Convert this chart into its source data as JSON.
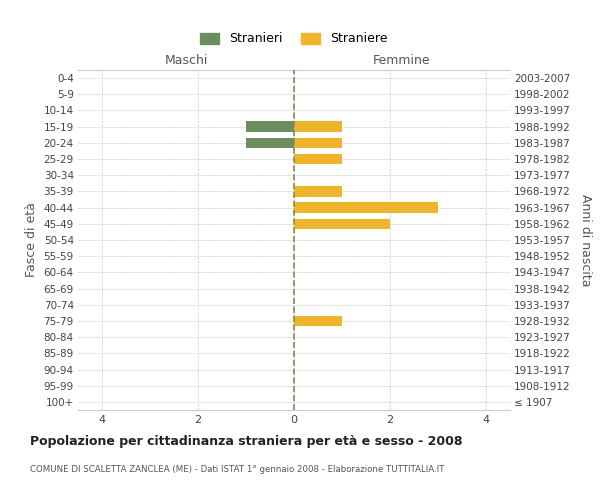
{
  "age_groups": [
    "100+",
    "95-99",
    "90-94",
    "85-89",
    "80-84",
    "75-79",
    "70-74",
    "65-69",
    "60-64",
    "55-59",
    "50-54",
    "45-49",
    "40-44",
    "35-39",
    "30-34",
    "25-29",
    "20-24",
    "15-19",
    "10-14",
    "5-9",
    "0-4"
  ],
  "birth_years": [
    "≤ 1907",
    "1908-1912",
    "1913-1917",
    "1918-1922",
    "1923-1927",
    "1928-1932",
    "1933-1937",
    "1938-1942",
    "1943-1947",
    "1948-1952",
    "1953-1957",
    "1958-1962",
    "1963-1967",
    "1968-1972",
    "1973-1977",
    "1978-1982",
    "1983-1987",
    "1988-1992",
    "1993-1997",
    "1998-2002",
    "2003-2007"
  ],
  "males": [
    0,
    0,
    0,
    0,
    0,
    0,
    0,
    0,
    0,
    0,
    0,
    0,
    0,
    0,
    0,
    0,
    1,
    1,
    0,
    0,
    0
  ],
  "females": [
    0,
    0,
    0,
    0,
    0,
    1,
    0,
    0,
    0,
    0,
    0,
    2,
    3,
    1,
    0,
    1,
    1,
    1,
    0,
    0,
    0
  ],
  "male_color": "#6b8e5e",
  "female_color": "#f0b429",
  "background_color": "#ffffff",
  "grid_color": "#cccccc",
  "center_line_color": "#888855",
  "title": "Popolazione per cittadinanza straniera per età e sesso - 2008",
  "subtitle": "COMUNE DI SCALETTA ZANCLEA (ME) - Dati ISTAT 1° gennaio 2008 - Elaborazione TUTTITALIA.IT",
  "ylabel_left": "Fasce di età",
  "ylabel_right": "Anni di nascita",
  "xlabel_maschi": "Maschi",
  "xlabel_femmine": "Femmine",
  "legend_stranieri": "Stranieri",
  "legend_straniere": "Straniere",
  "xlim": 4.5
}
